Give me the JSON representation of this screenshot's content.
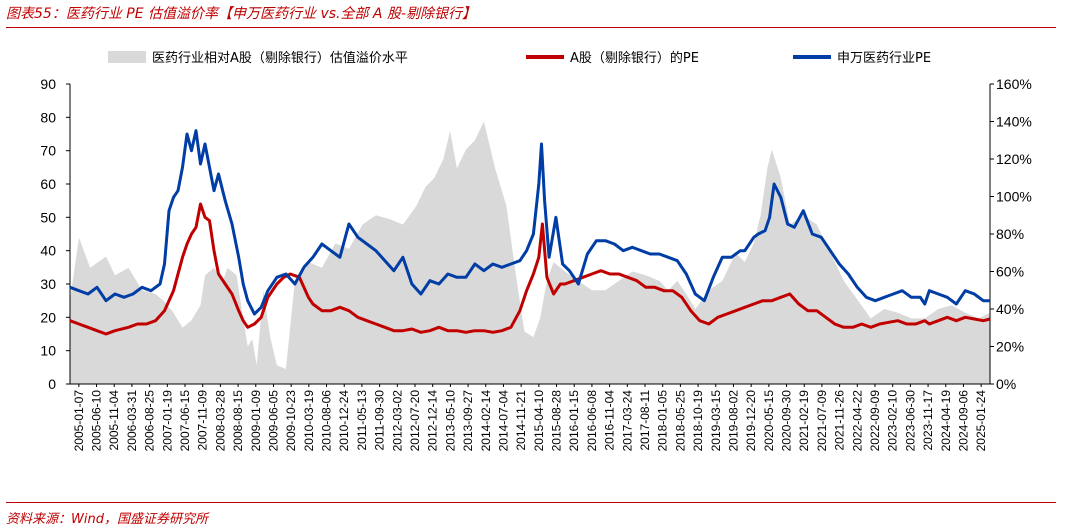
{
  "header": {
    "title": "图表55：医药行业 PE 估值溢价率【申万医药行业 vs.全部 A 股-剔除银行】",
    "source": "资料来源：Wind，国盛证券研究所"
  },
  "chart_data": {
    "type": "line",
    "title": "医药行业 PE 估值溢价率【申万医药行业 vs.全部 A 股-剔除银行】",
    "legend_position": "top",
    "y_left": {
      "ylim": [
        0,
        90
      ],
      "ticks": [
        "0",
        "10",
        "20",
        "30",
        "40",
        "50",
        "60",
        "70",
        "80",
        "90"
      ]
    },
    "y_right": {
      "ylim": [
        0,
        1.6
      ],
      "ticks": [
        "0%",
        "20%",
        "40%",
        "60%",
        "80%",
        "100%",
        "120%",
        "140%",
        "160%"
      ]
    },
    "x_tick_labels": [
      "2005-01-07",
      "2005-06-10",
      "2005-11-04",
      "2006-03-31",
      "2006-08-25",
      "2007-01-19",
      "2007-06-15",
      "2007-11-09",
      "2008-03-28",
      "2008-08-15",
      "2009-01-09",
      "2009-06-05",
      "2009-10-23",
      "2010-03-19",
      "2010-08-06",
      "2010-12-24",
      "2011-05-13",
      "2011-09-30",
      "2012-03-02",
      "2012-07-20",
      "2012-12-14",
      "2013-05-10",
      "2013-09-27",
      "2014-02-14",
      "2014-07-04",
      "2014-11-21",
      "2015-04-10",
      "2015-08-28",
      "2016-01-15",
      "2016-06-08",
      "2016-11-04",
      "2017-03-24",
      "2017-08-11",
      "2018-01-05",
      "2018-05-25",
      "2018-10-19",
      "2019-03-15",
      "2019-08-02",
      "2019-12-20",
      "2020-05-15",
      "2020-09-30",
      "2021-02-19",
      "2021-07-09",
      "2021-11-26",
      "2022-04-22",
      "2022-09-09",
      "2023-02-10",
      "2023-06-30",
      "2023-11-17",
      "2024-04-19",
      "2024-09-06",
      "2025-01-24"
    ],
    "x_range": [
      2005.0,
      2025.45
    ],
    "series": [
      {
        "name": "医药行业相对A股（剔除银行）估值溢价水平",
        "axis": "right",
        "style": "area",
        "color": "#d9d9d9",
        "x": [
          2005.0,
          2005.2,
          2005.45,
          2005.8,
          2006.0,
          2006.3,
          2006.6,
          2006.9,
          2007.1,
          2007.3,
          2007.5,
          2007.7,
          2007.9,
          2008.0,
          2008.2,
          2008.4,
          2008.5,
          2008.7,
          2008.85,
          2008.95,
          2009.05,
          2009.15,
          2009.3,
          2009.45,
          2009.6,
          2009.8,
          2010.0,
          2010.3,
          2010.6,
          2010.9,
          2011.2,
          2011.5,
          2011.8,
          2012.1,
          2012.4,
          2012.7,
          2012.9,
          2013.1,
          2013.3,
          2013.45,
          2013.6,
          2013.8,
          2014.0,
          2014.2,
          2014.45,
          2014.7,
          2014.9,
          2015.1,
          2015.3,
          2015.45,
          2015.6,
          2015.75,
          2016.0,
          2016.3,
          2016.6,
          2016.9,
          2017.2,
          2017.5,
          2017.8,
          2018.1,
          2018.3,
          2018.5,
          2018.7,
          2018.9,
          2019.2,
          2019.5,
          2019.8,
          2020.0,
          2020.2,
          2020.35,
          2020.5,
          2020.6,
          2020.8,
          2021.0,
          2021.3,
          2021.6,
          2021.9,
          2022.2,
          2022.5,
          2022.8,
          2023.1,
          2023.4,
          2023.7,
          2024.0,
          2024.3,
          2024.6,
          2024.9,
          2025.2,
          2025.45
        ],
        "values": [
          0.45,
          0.78,
          0.62,
          0.68,
          0.58,
          0.62,
          0.5,
          0.48,
          0.44,
          0.38,
          0.3,
          0.34,
          0.42,
          0.58,
          0.62,
          0.55,
          0.62,
          0.58,
          0.35,
          0.2,
          0.24,
          0.1,
          0.5,
          0.25,
          0.1,
          0.08,
          0.55,
          0.65,
          0.62,
          0.75,
          0.72,
          0.85,
          0.9,
          0.88,
          0.85,
          0.95,
          1.05,
          1.1,
          1.2,
          1.35,
          1.15,
          1.25,
          1.3,
          1.4,
          1.15,
          0.95,
          0.6,
          0.28,
          0.25,
          0.35,
          0.55,
          0.65,
          0.6,
          0.55,
          0.5,
          0.5,
          0.55,
          0.6,
          0.58,
          0.55,
          0.5,
          0.55,
          0.48,
          0.4,
          0.5,
          0.55,
          0.7,
          0.65,
          0.75,
          0.9,
          1.15,
          1.25,
          1.1,
          0.85,
          0.9,
          0.85,
          0.7,
          0.55,
          0.45,
          0.35,
          0.4,
          0.38,
          0.35,
          0.35,
          0.4,
          0.42,
          0.38,
          0.35,
          0.38
        ]
      },
      {
        "name": "A股（剔除银行）的PE",
        "axis": "left",
        "style": "line",
        "color": "#c00000",
        "x": [
          2005.0,
          2005.2,
          2005.4,
          2005.6,
          2005.8,
          2006.0,
          2006.3,
          2006.5,
          2006.7,
          2006.9,
          2007.1,
          2007.3,
          2007.5,
          2007.6,
          2007.7,
          2007.8,
          2007.9,
          2008.0,
          2008.1,
          2008.2,
          2008.3,
          2008.45,
          2008.6,
          2008.75,
          2008.85,
          2008.95,
          2009.1,
          2009.25,
          2009.4,
          2009.6,
          2009.75,
          2009.9,
          2010.1,
          2010.3,
          2010.4,
          2010.6,
          2010.8,
          2011.0,
          2011.2,
          2011.4,
          2011.6,
          2011.8,
          2012.0,
          2012.2,
          2012.4,
          2012.6,
          2012.8,
          2013.0,
          2013.2,
          2013.4,
          2013.6,
          2013.8,
          2014.0,
          2014.2,
          2014.4,
          2014.6,
          2014.8,
          2015.0,
          2015.15,
          2015.3,
          2015.42,
          2015.5,
          2015.6,
          2015.75,
          2015.9,
          2016.0,
          2016.2,
          2016.4,
          2016.6,
          2016.8,
          2017.0,
          2017.2,
          2017.4,
          2017.6,
          2017.8,
          2018.0,
          2018.2,
          2018.4,
          2018.6,
          2018.8,
          2019.0,
          2019.2,
          2019.4,
          2019.6,
          2019.8,
          2020.0,
          2020.2,
          2020.4,
          2020.6,
          2020.8,
          2021.0,
          2021.2,
          2021.4,
          2021.6,
          2021.8,
          2022.0,
          2022.2,
          2022.4,
          2022.6,
          2022.8,
          2023.0,
          2023.2,
          2023.4,
          2023.6,
          2023.8,
          2024.0,
          2024.1,
          2024.3,
          2024.5,
          2024.7,
          2024.9,
          2025.1,
          2025.3,
          2025.45
        ],
        "values": [
          19,
          18,
          17,
          16,
          15,
          16,
          17,
          18,
          18,
          19,
          22,
          28,
          38,
          42,
          45,
          47,
          54,
          50,
          49,
          40,
          33,
          30,
          27,
          22,
          19,
          17,
          18,
          20,
          26,
          30,
          32,
          33,
          32,
          26,
          24,
          22,
          22,
          23,
          22,
          20,
          19,
          18,
          17,
          16,
          16,
          16.5,
          15.5,
          16,
          17,
          16,
          16,
          15.5,
          16,
          16,
          15.5,
          16,
          17,
          22,
          28,
          33,
          38,
          48,
          32,
          27,
          30,
          30,
          31,
          32,
          33,
          34,
          33,
          33,
          32,
          31,
          29,
          29,
          28,
          28,
          26,
          22,
          19,
          18,
          20,
          21,
          22,
          23,
          24,
          25,
          25,
          26,
          27,
          24,
          22,
          22,
          20,
          18,
          17,
          17,
          18,
          17,
          18,
          18.5,
          19,
          18,
          18,
          19,
          18,
          19,
          20,
          19,
          20,
          19.5,
          19,
          19.5
        ]
      },
      {
        "name": "申万医药行业PE",
        "axis": "left",
        "style": "line",
        "color": "#003da5",
        "x": [
          2005.0,
          2005.2,
          2005.4,
          2005.6,
          2005.8,
          2006.0,
          2006.2,
          2006.4,
          2006.6,
          2006.8,
          2007.0,
          2007.1,
          2007.2,
          2007.3,
          2007.4,
          2007.5,
          2007.6,
          2007.7,
          2007.8,
          2007.9,
          2008.0,
          2008.1,
          2008.2,
          2008.3,
          2008.45,
          2008.6,
          2008.75,
          2008.85,
          2008.95,
          2009.1,
          2009.25,
          2009.4,
          2009.6,
          2009.8,
          2010.0,
          2010.2,
          2010.4,
          2010.6,
          2010.8,
          2011.0,
          2011.2,
          2011.4,
          2011.6,
          2011.8,
          2012.0,
          2012.2,
          2012.4,
          2012.6,
          2012.8,
          2013.0,
          2013.2,
          2013.4,
          2013.6,
          2013.8,
          2014.0,
          2014.2,
          2014.4,
          2014.6,
          2014.8,
          2015.0,
          2015.15,
          2015.3,
          2015.42,
          2015.48,
          2015.55,
          2015.65,
          2015.8,
          2015.95,
          2016.1,
          2016.3,
          2016.5,
          2016.7,
          2016.9,
          2017.1,
          2017.3,
          2017.5,
          2017.7,
          2017.9,
          2018.1,
          2018.3,
          2018.5,
          2018.7,
          2018.9,
          2019.1,
          2019.3,
          2019.5,
          2019.7,
          2019.9,
          2020.0,
          2020.1,
          2020.2,
          2020.3,
          2020.45,
          2020.55,
          2020.65,
          2020.8,
          2020.95,
          2021.1,
          2021.3,
          2021.5,
          2021.7,
          2021.9,
          2022.1,
          2022.3,
          2022.5,
          2022.7,
          2022.9,
          2023.1,
          2023.3,
          2023.5,
          2023.7,
          2023.9,
          2024.0,
          2024.1,
          2024.3,
          2024.5,
          2024.7,
          2024.9,
          2025.1,
          2025.3,
          2025.45
        ],
        "values": [
          29,
          28,
          27,
          29,
          25,
          27,
          26,
          27,
          29,
          28,
          30,
          36,
          52,
          56,
          58,
          65,
          75,
          70,
          76,
          66,
          72,
          65,
          58,
          63,
          55,
          48,
          38,
          30,
          25,
          21,
          23,
          28,
          32,
          33,
          30,
          35,
          38,
          42,
          40,
          38,
          48,
          44,
          42,
          40,
          37,
          34,
          38,
          30,
          27,
          31,
          30,
          33,
          32,
          32,
          36,
          34,
          36,
          35,
          36,
          37,
          40,
          45,
          60,
          72,
          55,
          38,
          50,
          36,
          34,
          30,
          39,
          43,
          43,
          42,
          40,
          41,
          40,
          39,
          39,
          38,
          37,
          33,
          27,
          25,
          32,
          38,
          38,
          40,
          40,
          42,
          44,
          45,
          46,
          50,
          60,
          56,
          48,
          47,
          52,
          45,
          44,
          40,
          36,
          33,
          29,
          26,
          25,
          26,
          27,
          28,
          26,
          26,
          24,
          28,
          27,
          26,
          24,
          28,
          27,
          25,
          25
        ]
      }
    ]
  }
}
